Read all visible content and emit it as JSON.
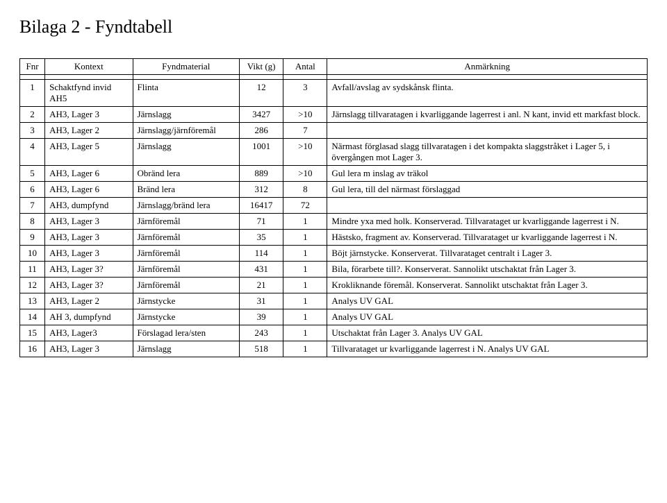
{
  "title": "Bilaga 2 - Fyndtabell",
  "columns": [
    "Fnr",
    "Kontext",
    "Fyndmaterial",
    "Vikt (g)",
    "Antal",
    "Anmärkning"
  ],
  "rows": [
    {
      "fnr": "1",
      "kontext": "Schaktfynd invid AH5",
      "material": "Flinta",
      "vikt": "12",
      "antal": "3",
      "anm": "Avfall/avslag av sydskånsk flinta."
    },
    {
      "fnr": "2",
      "kontext": "AH3, Lager 3",
      "material": "Järnslagg",
      "vikt": "3427",
      "antal": ">10",
      "anm": "Järnslagg tillvaratagen i kvarliggande lagerrest i anl. N kant, invid ett markfast block."
    },
    {
      "fnr": "3",
      "kontext": "AH3, Lager 2",
      "material": "Järnslagg/järnföremål",
      "vikt": "286",
      "antal": "7",
      "anm": ""
    },
    {
      "fnr": "4",
      "kontext": "AH3, Lager 5",
      "material": "Järnslagg",
      "vikt": "1001",
      "antal": ">10",
      "anm": "Närmast förglasad slagg tillvaratagen i det kompakta slaggstråket i Lager 5, i övergången mot Lager 3."
    },
    {
      "fnr": "5",
      "kontext": "AH3, Lager 6",
      "material": "Obränd lera",
      "vikt": "889",
      "antal": ">10",
      "anm": "Gul lera m inslag av träkol"
    },
    {
      "fnr": "6",
      "kontext": "AH3, Lager 6",
      "material": "Bränd lera",
      "vikt": "312",
      "antal": "8",
      "anm": "Gul lera, till del närmast förslaggad"
    },
    {
      "fnr": "7",
      "kontext": "AH3, dumpfynd",
      "material": "Järnslagg/bränd lera",
      "vikt": "16417",
      "antal": "72",
      "anm": ""
    },
    {
      "fnr": "8",
      "kontext": "AH3, Lager 3",
      "material": "Järnföremål",
      "vikt": "71",
      "antal": "1",
      "anm": "Mindre yxa med holk. Konserverad. Tillvarataget ur kvarliggande lagerrest i N."
    },
    {
      "fnr": "9",
      "kontext": "AH3, Lager 3",
      "material": "Järnföremål",
      "vikt": "35",
      "antal": "1",
      "anm": "Hästsko, fragment av. Konserverad. Tillvarataget ur kvarliggande lagerrest i N."
    },
    {
      "fnr": "10",
      "kontext": "AH3, Lager 3",
      "material": "Järnföremål",
      "vikt": "114",
      "antal": "1",
      "anm": "Böjt järnstycke. Konserverat. Tillvarataget centralt i Lager 3."
    },
    {
      "fnr": "11",
      "kontext": "AH3, Lager 3?",
      "material": "Järnföremål",
      "vikt": "431",
      "antal": "1",
      "anm": "Bila, förarbete till?. Konserverat. Sannolikt utschaktat från Lager 3."
    },
    {
      "fnr": "12",
      "kontext": "AH3, Lager 3?",
      "material": "Järnföremål",
      "vikt": "21",
      "antal": "1",
      "anm": "Krokliknande föremål. Konserverat. Sannolikt utschaktat från Lager 3."
    },
    {
      "fnr": "13",
      "kontext": "AH3, Lager 2",
      "material": "Järnstycke",
      "vikt": "31",
      "antal": "1",
      "anm": "Analys UV GAL"
    },
    {
      "fnr": "14",
      "kontext": "AH 3, dumpfynd",
      "material": "Järnstycke",
      "vikt": "39",
      "antal": "1",
      "anm": "Analys UV GAL"
    },
    {
      "fnr": "15",
      "kontext": "AH3, Lager3",
      "material": "Förslagad lera/sten",
      "vikt": "243",
      "antal": "1",
      "anm": "Utschaktat från Lager 3. Analys UV GAL"
    },
    {
      "fnr": "16",
      "kontext": "AH3, Lager 3",
      "material": "Järnslagg",
      "vikt": "518",
      "antal": "1",
      "anm": "Tillvarataget ur kvarliggande lagerrest i N. Analys UV GAL"
    }
  ]
}
